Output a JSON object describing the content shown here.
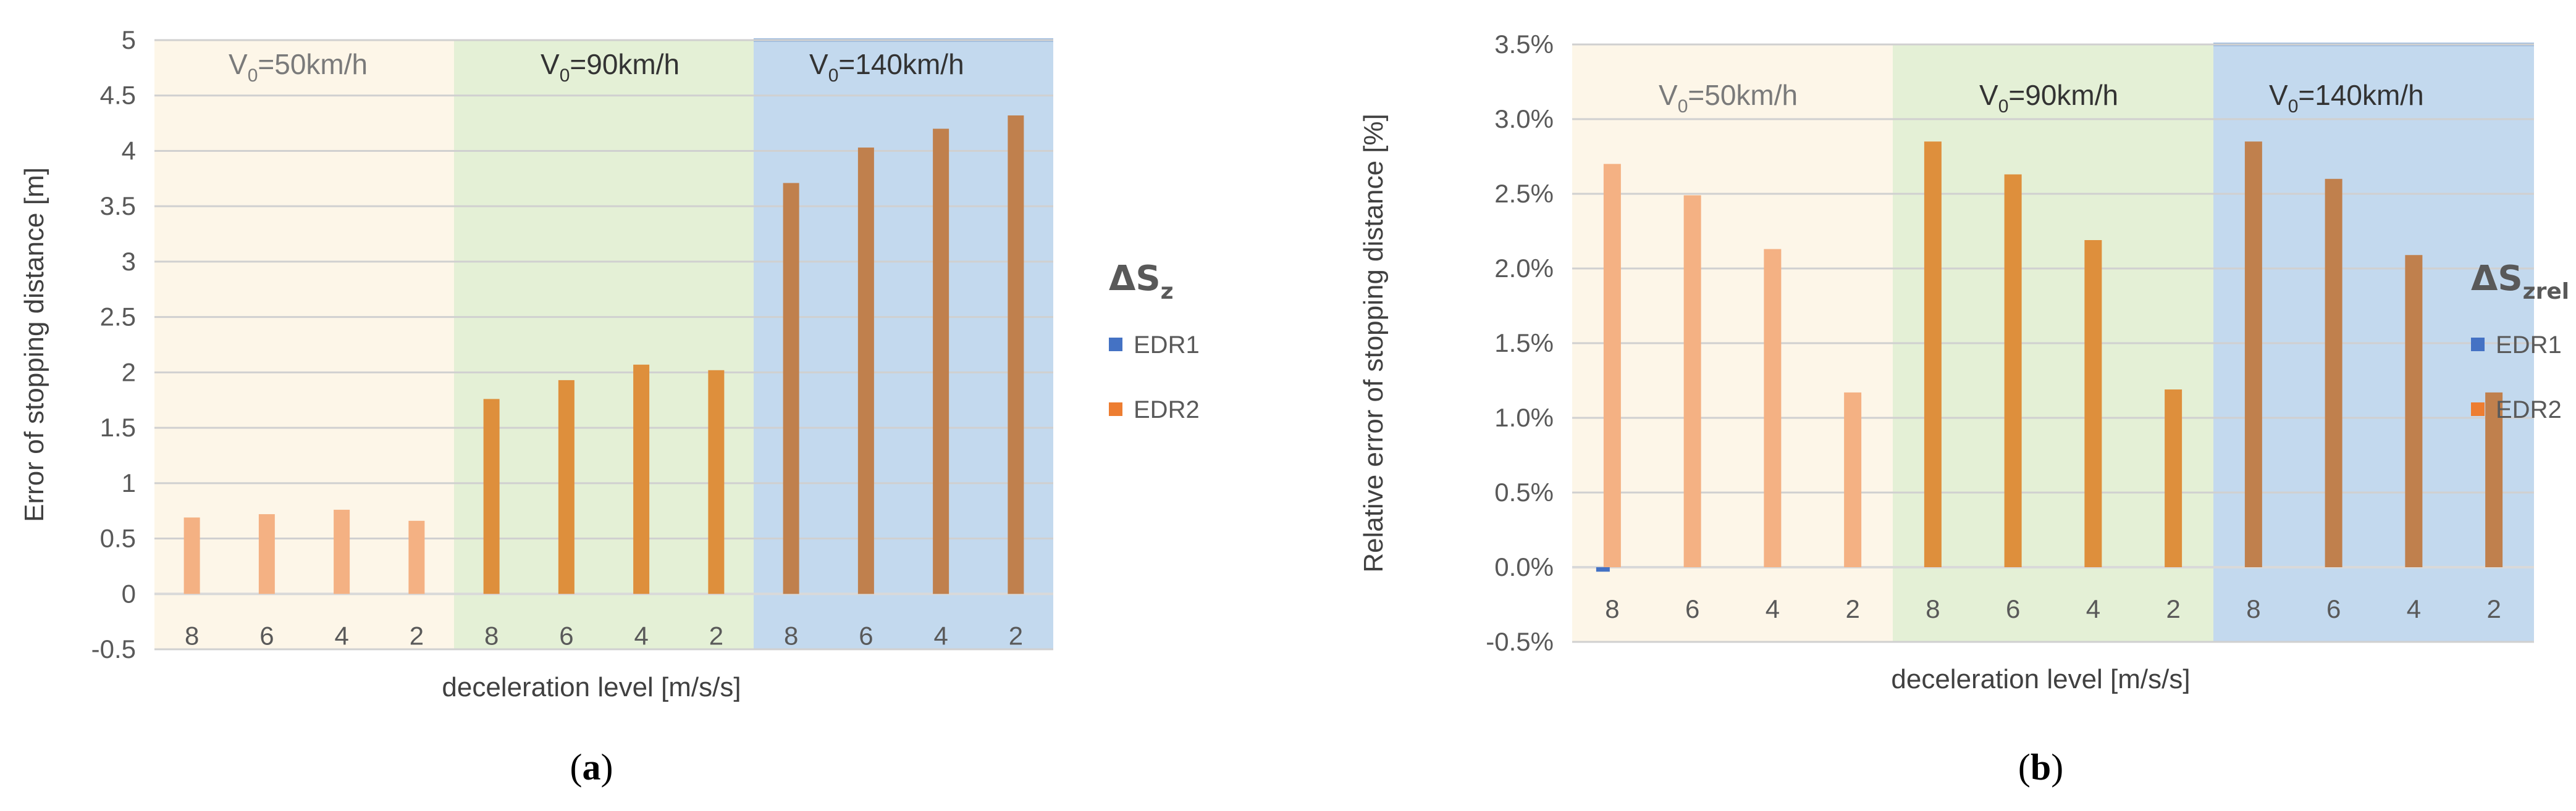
{
  "chart_data": [
    {
      "type": "bar",
      "panel_caption": {
        "open": "(",
        "letter": "a",
        "close": ")"
      },
      "ylabel": "Error of stopping distance  [m]",
      "xlabel": "deceleration level  [m/s/s]",
      "ylim": [
        -0.5,
        5
      ],
      "yticks": [
        "-0.5",
        "0",
        "0.5",
        "1",
        "1.5",
        "2",
        "2.5",
        "3",
        "3.5",
        "4",
        "4.5",
        "5"
      ],
      "grid": true,
      "legend_title": {
        "main": "ΔS",
        "sub": "z"
      },
      "legend_position": "right",
      "categories": [
        "8",
        "6",
        "4",
        "2",
        "8",
        "6",
        "4",
        "2",
        "8",
        "6",
        "4",
        "2"
      ],
      "groups": [
        {
          "label_main": "V",
          "label_sub": "0",
          "label_rest": "=50km/h",
          "background": "#fdf6e8"
        },
        {
          "label_main": "V",
          "label_sub": "0",
          "label_rest": "=90km/h",
          "background": "#e4f0d6"
        },
        {
          "label_main": "V",
          "label_sub": "0",
          "label_rest": "=140km/h",
          "background": "#c3d9ee"
        }
      ],
      "series": [
        {
          "name": "EDR1",
          "color": "#4472c4",
          "values": [
            0,
            0,
            0,
            0,
            0,
            0,
            0,
            0,
            0,
            0,
            0,
            0
          ]
        },
        {
          "name": "EDR2",
          "color": "#ed7d31",
          "values": [
            0.69,
            0.72,
            0.76,
            0.66,
            1.76,
            1.93,
            2.07,
            2.02,
            3.71,
            4.03,
            4.2,
            4.32
          ]
        }
      ],
      "bar_colors": [
        "#f4b183",
        "#f4b183",
        "#f4b183",
        "#f4b183",
        "#de8f3c",
        "#de8f3c",
        "#de8f3c",
        "#de8f3c",
        "#c0804d",
        "#c0804d",
        "#c0804d",
        "#c0804d"
      ]
    },
    {
      "type": "bar",
      "panel_caption": {
        "open": "(",
        "letter": "b",
        "close": ")"
      },
      "ylabel": "Relative error of stopping distance  [%]",
      "xlabel": "deceleration level [m/s/s]",
      "ylim": [
        -0.5,
        3.5
      ],
      "yticks": [
        "-0.5%",
        "0.0%",
        "0.5%",
        "1.0%",
        "1.5%",
        "2.0%",
        "2.5%",
        "3.0%",
        "3.5%"
      ],
      "grid": true,
      "legend_title": {
        "main": "ΔS",
        "sub": "zrel"
      },
      "legend_position": "right",
      "categories": [
        "8",
        "6",
        "4",
        "2",
        "8",
        "6",
        "4",
        "2",
        "8",
        "6",
        "4",
        "2"
      ],
      "groups": [
        {
          "label_main": "V",
          "label_sub": "0",
          "label_rest": "=50km/h",
          "background": "#fdf6e8"
        },
        {
          "label_main": "V",
          "label_sub": "0",
          "label_rest": "=90km/h",
          "background": "#e4f0d6"
        },
        {
          "label_main": "V",
          "label_sub": "0",
          "label_rest": "=140km/h",
          "background": "#c3d9ee"
        }
      ],
      "series": [
        {
          "name": "EDR1",
          "color": "#4472c4",
          "values": [
            -0.03,
            0,
            0,
            0,
            0,
            0,
            0,
            0,
            0,
            0,
            0,
            0
          ]
        },
        {
          "name": "EDR2",
          "color": "#ed7d31",
          "values": [
            2.7,
            2.49,
            2.13,
            1.17,
            2.85,
            2.63,
            2.19,
            1.19,
            2.85,
            2.6,
            2.09,
            1.17
          ]
        }
      ],
      "bar_colors": [
        "#f4b183",
        "#f4b183",
        "#f4b183",
        "#f4b183",
        "#de8f3c",
        "#de8f3c",
        "#de8f3c",
        "#de8f3c",
        "#c0804d",
        "#c0804d",
        "#c0804d",
        "#c0804d"
      ]
    }
  ]
}
